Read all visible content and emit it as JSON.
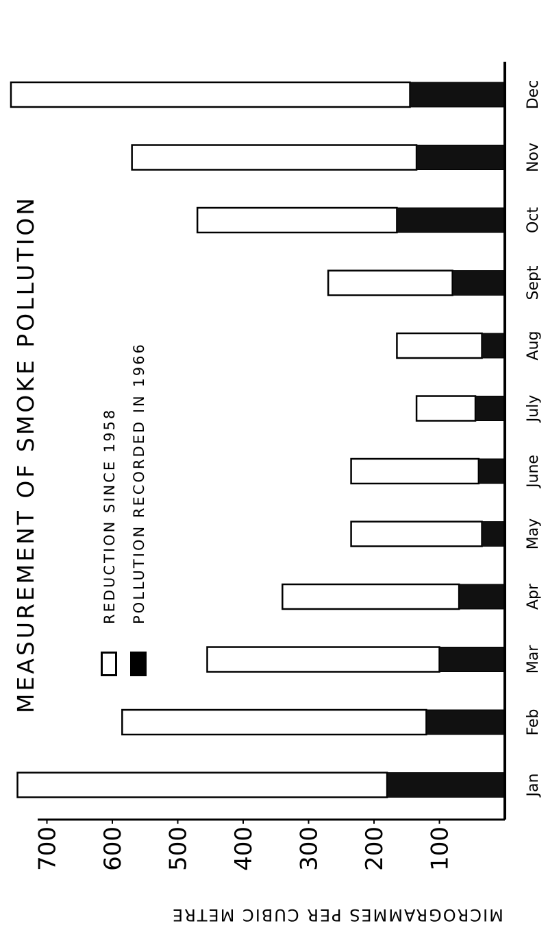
{
  "chart_data": {
    "type": "bar",
    "orientation": "horizontal",
    "title": "MEASUREMENT OF SMOKE POLLUTION",
    "categories": [
      "Jan",
      "Feb",
      "Mar",
      "Apr",
      "May",
      "June",
      "July",
      "Aug",
      "Sept",
      "Oct",
      "Nov",
      "Dec"
    ],
    "series": [
      {
        "name": "REDUCTION SINCE 1958",
        "style": "outline",
        "values": [
          565,
          465,
          355,
          270,
          200,
          195,
          90,
          130,
          190,
          305,
          435,
          610
        ]
      },
      {
        "name": "POLLUTION RECORDED IN 1966",
        "style": "filled",
        "values": [
          180,
          120,
          100,
          70,
          35,
          40,
          45,
          35,
          80,
          165,
          135,
          145
        ]
      }
    ],
    "xlim": [
      0,
      700
    ],
    "x_ticks": [
      "700",
      "600",
      "500",
      "400",
      "300",
      "200",
      "100"
    ],
    "axis_label": "MICROGRAMMES PER CUBIC METRE",
    "colors": {
      "pollution": "#111111",
      "reduction": "#ffffff",
      "axis": "#000000"
    }
  }
}
